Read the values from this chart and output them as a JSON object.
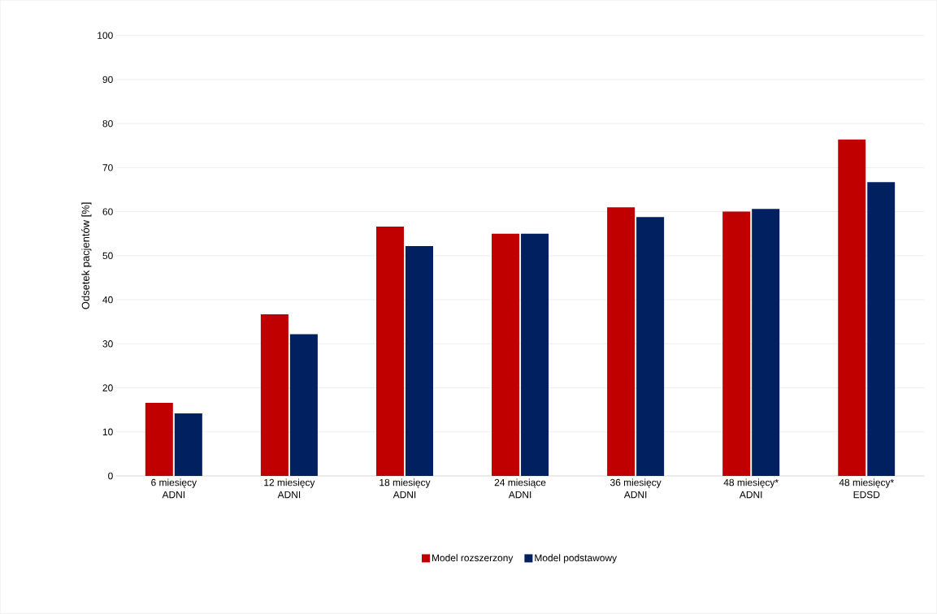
{
  "chart_data": {
    "type": "bar",
    "ylabel": "Odsetek pacjentów [%]",
    "categories": [
      "6 miesięcy\nADNI",
      "12 miesięcy\nADNI",
      "18 miesięcy\nADNI",
      "24 miesiące\nADNI",
      "36 miesięcy\nADNI",
      "48 miesięcy*\nADNI",
      "48 miesięcy*\nEDSD"
    ],
    "series": [
      {
        "name": "Model rozszerzony",
        "color": "#c00000",
        "values": [
          16.6,
          36.7,
          56.6,
          55.0,
          61.0,
          60.0,
          76.4
        ]
      },
      {
        "name": "Model podstawowy",
        "color": "#002060",
        "values": [
          14.2,
          32.2,
          52.2,
          55.0,
          58.8,
          60.6,
          66.7
        ]
      }
    ],
    "ylim": [
      0,
      100
    ],
    "yticks": [
      0,
      10,
      20,
      30,
      40,
      50,
      60,
      70,
      80,
      90,
      100
    ],
    "grid": "y",
    "legend": "bottom"
  }
}
